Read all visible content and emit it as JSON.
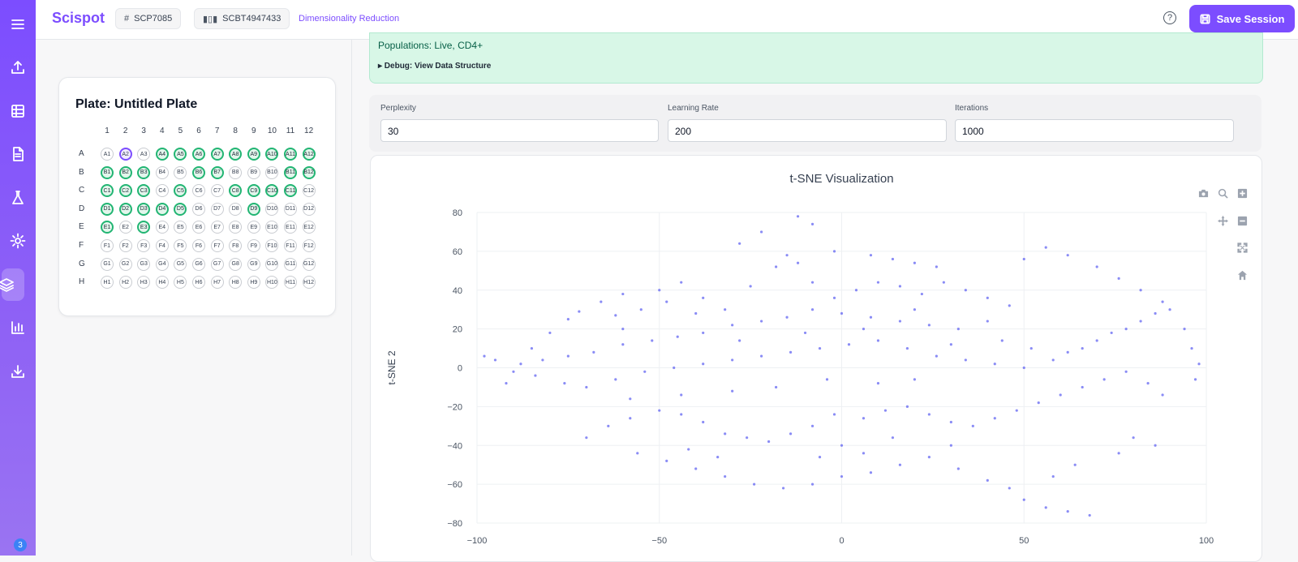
{
  "app": {
    "brand": "Scispot"
  },
  "header": {
    "chip1": {
      "icon": "hash-icon",
      "label": "SCP7085"
    },
    "chip2": {
      "icon": "barcode-icon",
      "label": "SCBT4947433"
    },
    "breadcrumb": "Dimensionality Reduction",
    "help_icon": "help-icon",
    "save_label": "Save Session"
  },
  "sidebar": {
    "items": [
      {
        "icon": "menu-icon"
      },
      {
        "icon": "upload-icon"
      },
      {
        "icon": "table-icon"
      },
      {
        "icon": "document-icon"
      },
      {
        "icon": "flask-icon"
      },
      {
        "icon": "gear-icon"
      },
      {
        "icon": "layers-icon",
        "active": true
      },
      {
        "icon": "bar-chart-icon"
      },
      {
        "icon": "download-icon"
      }
    ],
    "badge": "3"
  },
  "plate": {
    "title": "Plate: Untitled Plate",
    "columns": [
      "1",
      "2",
      "3",
      "4",
      "5",
      "6",
      "7",
      "8",
      "9",
      "10",
      "11",
      "12"
    ],
    "rows": [
      "A",
      "B",
      "C",
      "D",
      "E",
      "F",
      "G",
      "H"
    ],
    "selected": [
      "A4",
      "A5",
      "A6",
      "A7",
      "A8",
      "A9",
      "A10",
      "A11",
      "A12",
      "B1",
      "B2",
      "B3",
      "B6",
      "B7",
      "B11",
      "B12",
      "C1",
      "C2",
      "C3",
      "C5",
      "C8",
      "C9",
      "C10",
      "C11",
      "D1",
      "D2",
      "D3",
      "D4",
      "D5",
      "D9",
      "E1",
      "E3"
    ],
    "current": "A2"
  },
  "banner": {
    "populations": "Populations: Live, CD4+",
    "debug": "▸ Debug: View Data Structure"
  },
  "params": {
    "perplexity": {
      "label": "Perplexity",
      "value": "30"
    },
    "learning_rate": {
      "label": "Learning Rate",
      "value": "200"
    },
    "iterations": {
      "label": "Iterations",
      "value": "1000"
    }
  },
  "modebar": [
    "camera-icon",
    "zoom-icon",
    "zoom-in-icon",
    "pan-icon",
    "zoom-out-icon",
    "autoscale-icon",
    "home-icon"
  ],
  "chart_data": {
    "type": "scatter",
    "title": "t-SNE Visualization",
    "xlabel": "",
    "ylabel": "t-SNE 2",
    "xlim": [
      -100,
      100
    ],
    "ylim": [
      -80,
      80
    ],
    "x_ticks": [
      "−100",
      "−50",
      "0",
      "50",
      "100"
    ],
    "y_ticks": [
      "80",
      "60",
      "40",
      "20",
      "0",
      "−20",
      "−40",
      "−60",
      "−80"
    ],
    "marker_color": "#6366f1",
    "grid": true,
    "series": [
      {
        "values": [
          [
            -72,
            29
          ],
          [
            -62,
            27
          ],
          [
            -55,
            30
          ],
          [
            -48,
            34
          ],
          [
            -38,
            36
          ],
          [
            -32,
            30
          ],
          [
            -25,
            42
          ],
          [
            -18,
            52
          ],
          [
            -15,
            58
          ],
          [
            -12,
            54
          ],
          [
            -8,
            44
          ],
          [
            -2,
            36
          ],
          [
            4,
            40
          ],
          [
            10,
            44
          ],
          [
            16,
            42
          ],
          [
            22,
            38
          ],
          [
            28,
            44
          ],
          [
            34,
            40
          ],
          [
            40,
            36
          ],
          [
            46,
            32
          ],
          [
            -98,
            6
          ],
          [
            -95,
            4
          ],
          [
            -88,
            2
          ],
          [
            -82,
            4
          ],
          [
            -75,
            6
          ],
          [
            -68,
            8
          ],
          [
            -60,
            12
          ],
          [
            -52,
            14
          ],
          [
            -45,
            16
          ],
          [
            -38,
            18
          ],
          [
            -30,
            22
          ],
          [
            -22,
            24
          ],
          [
            -15,
            26
          ],
          [
            -8,
            30
          ],
          [
            0,
            28
          ],
          [
            8,
            26
          ],
          [
            16,
            24
          ],
          [
            24,
            22
          ],
          [
            32,
            20
          ],
          [
            40,
            24
          ],
          [
            -90,
            -2
          ],
          [
            -84,
            -4
          ],
          [
            -76,
            -8
          ],
          [
            -70,
            -10
          ],
          [
            -62,
            -6
          ],
          [
            -54,
            -2
          ],
          [
            -46,
            0
          ],
          [
            -38,
            2
          ],
          [
            -30,
            4
          ],
          [
            -22,
            6
          ],
          [
            -14,
            8
          ],
          [
            -6,
            10
          ],
          [
            2,
            12
          ],
          [
            10,
            14
          ],
          [
            18,
            10
          ],
          [
            26,
            6
          ],
          [
            34,
            4
          ],
          [
            42,
            2
          ],
          [
            50,
            0
          ],
          [
            58,
            4
          ],
          [
            62,
            8
          ],
          [
            66,
            10
          ],
          [
            70,
            14
          ],
          [
            74,
            18
          ],
          [
            78,
            20
          ],
          [
            82,
            24
          ],
          [
            86,
            28
          ],
          [
            90,
            30
          ],
          [
            94,
            20
          ],
          [
            96,
            10
          ],
          [
            98,
            2
          ],
          [
            97,
            -6
          ],
          [
            -70,
            -36
          ],
          [
            -64,
            -30
          ],
          [
            -58,
            -26
          ],
          [
            -50,
            -22
          ],
          [
            -44,
            -24
          ],
          [
            -38,
            -28
          ],
          [
            -32,
            -34
          ],
          [
            -26,
            -36
          ],
          [
            -20,
            -38
          ],
          [
            -14,
            -34
          ],
          [
            -8,
            -30
          ],
          [
            -2,
            -24
          ],
          [
            6,
            -26
          ],
          [
            12,
            -22
          ],
          [
            18,
            -20
          ],
          [
            24,
            -24
          ],
          [
            30,
            -28
          ],
          [
            36,
            -30
          ],
          [
            42,
            -26
          ],
          [
            48,
            -22
          ],
          [
            54,
            -18
          ],
          [
            60,
            -14
          ],
          [
            66,
            -10
          ],
          [
            72,
            -6
          ],
          [
            78,
            -2
          ],
          [
            84,
            -8
          ],
          [
            88,
            -14
          ],
          [
            -56,
            -44
          ],
          [
            -48,
            -48
          ],
          [
            -40,
            -52
          ],
          [
            -32,
            -56
          ],
          [
            -24,
            -60
          ],
          [
            -16,
            -62
          ],
          [
            -8,
            -60
          ],
          [
            0,
            -56
          ],
          [
            8,
            -54
          ],
          [
            16,
            -50
          ],
          [
            24,
            -46
          ],
          [
            32,
            -52
          ],
          [
            40,
            -58
          ],
          [
            46,
            -62
          ],
          [
            50,
            -68
          ],
          [
            56,
            -72
          ],
          [
            62,
            -74
          ],
          [
            68,
            -76
          ],
          [
            -75,
            25
          ],
          [
            -80,
            18
          ],
          [
            -85,
            10
          ],
          [
            -92,
            -8
          ],
          [
            -60,
            20
          ],
          [
            -40,
            28
          ],
          [
            -28,
            14
          ],
          [
            -10,
            18
          ],
          [
            6,
            20
          ],
          [
            20,
            30
          ],
          [
            30,
            12
          ],
          [
            44,
            14
          ],
          [
            52,
            10
          ],
          [
            -18,
            -10
          ],
          [
            -4,
            -6
          ],
          [
            10,
            -8
          ],
          [
            20,
            -6
          ],
          [
            -30,
            -12
          ],
          [
            -44,
            -14
          ],
          [
            -58,
            -16
          ],
          [
            50,
            56
          ],
          [
            56,
            62
          ],
          [
            62,
            58
          ],
          [
            70,
            52
          ],
          [
            76,
            46
          ],
          [
            82,
            40
          ],
          [
            88,
            34
          ],
          [
            -50,
            40
          ],
          [
            -44,
            44
          ],
          [
            -60,
            38
          ],
          [
            -66,
            34
          ],
          [
            -12,
            78
          ],
          [
            -8,
            74
          ],
          [
            -2,
            60
          ],
          [
            8,
            58
          ],
          [
            14,
            56
          ],
          [
            20,
            54
          ],
          [
            26,
            52
          ],
          [
            -22,
            70
          ],
          [
            -28,
            64
          ],
          [
            0,
            -40
          ],
          [
            6,
            -44
          ],
          [
            -6,
            -46
          ],
          [
            14,
            -36
          ],
          [
            30,
            -40
          ],
          [
            -34,
            -46
          ],
          [
            -42,
            -42
          ],
          [
            80,
            -36
          ],
          [
            86,
            -40
          ],
          [
            76,
            -44
          ],
          [
            64,
            -50
          ],
          [
            58,
            -56
          ]
        ]
      }
    ]
  }
}
